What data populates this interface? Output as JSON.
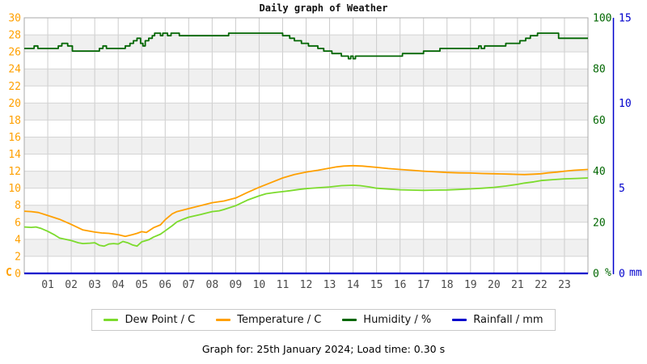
{
  "title": "Daily graph of Weather",
  "footer": "Graph for: 25th January 2024; Load time: 0.30 s",
  "chart_data": {
    "type": "line",
    "title": "Daily graph of Weather",
    "x_axis": {
      "range": [
        0,
        24
      ],
      "labels": [
        "01",
        "02",
        "03",
        "04",
        "05",
        "06",
        "07",
        "08",
        "09",
        "10",
        "11",
        "12",
        "13",
        "14",
        "15",
        "16",
        "17",
        "18",
        "19",
        "20",
        "21",
        "22",
        "23"
      ],
      "color": "#4a4a4a"
    },
    "y_axis_left": {
      "unit": "C",
      "color": "#FFA000",
      "range": [
        0,
        30
      ],
      "ticks": [
        0,
        2,
        4,
        6,
        8,
        10,
        12,
        14,
        16,
        18,
        20,
        22,
        24,
        26,
        28,
        30
      ]
    },
    "y_axis_humidity": {
      "unit": "%",
      "color": "#006600",
      "range": [
        0,
        100
      ],
      "ticks": [
        0,
        20,
        40,
        60,
        80,
        100
      ]
    },
    "y_axis_rain": {
      "unit": "mm",
      "color": "#0000CC",
      "range": [
        0,
        15
      ],
      "ticks": [
        0,
        5,
        10,
        15
      ]
    },
    "grid": true,
    "legend_position": "bottom",
    "series": [
      {
        "id": "dew-point",
        "name": "Dew Point / C",
        "color": "#7CDB2D",
        "axis": "left",
        "step": false,
        "points": [
          [
            0,
            5.45
          ],
          [
            0.3,
            5.4
          ],
          [
            0.5,
            5.45
          ],
          [
            0.7,
            5.3
          ],
          [
            1,
            4.95
          ],
          [
            1.3,
            4.5
          ],
          [
            1.5,
            4.15
          ],
          [
            2,
            3.85
          ],
          [
            2.3,
            3.6
          ],
          [
            2.5,
            3.5
          ],
          [
            2.8,
            3.55
          ],
          [
            3,
            3.6
          ],
          [
            3.2,
            3.3
          ],
          [
            3.4,
            3.2
          ],
          [
            3.6,
            3.45
          ],
          [
            3.8,
            3.5
          ],
          [
            4,
            3.45
          ],
          [
            4.2,
            3.75
          ],
          [
            4.4,
            3.6
          ],
          [
            4.6,
            3.35
          ],
          [
            4.8,
            3.2
          ],
          [
            5,
            3.7
          ],
          [
            5.3,
            3.95
          ],
          [
            5.5,
            4.25
          ],
          [
            5.8,
            4.6
          ],
          [
            6,
            5.0
          ],
          [
            6.3,
            5.6
          ],
          [
            6.5,
            6.05
          ],
          [
            6.8,
            6.4
          ],
          [
            7,
            6.6
          ],
          [
            7.5,
            6.9
          ],
          [
            8,
            7.25
          ],
          [
            8.3,
            7.35
          ],
          [
            8.5,
            7.5
          ],
          [
            9,
            7.95
          ],
          [
            9.5,
            8.6
          ],
          [
            10,
            9.1
          ],
          [
            10.3,
            9.35
          ],
          [
            10.7,
            9.5
          ],
          [
            11,
            9.6
          ],
          [
            11.3,
            9.7
          ],
          [
            11.7,
            9.85
          ],
          [
            12,
            9.95
          ],
          [
            12.5,
            10.05
          ],
          [
            13,
            10.15
          ],
          [
            13.5,
            10.3
          ],
          [
            14,
            10.35
          ],
          [
            14.3,
            10.3
          ],
          [
            14.7,
            10.15
          ],
          [
            15,
            10.0
          ],
          [
            15.5,
            9.9
          ],
          [
            16,
            9.82
          ],
          [
            16.5,
            9.78
          ],
          [
            17,
            9.75
          ],
          [
            17.5,
            9.78
          ],
          [
            18,
            9.8
          ],
          [
            18.5,
            9.85
          ],
          [
            19,
            9.92
          ],
          [
            19.5,
            10.0
          ],
          [
            20,
            10.1
          ],
          [
            20.5,
            10.25
          ],
          [
            21,
            10.45
          ],
          [
            21.3,
            10.6
          ],
          [
            21.7,
            10.75
          ],
          [
            22,
            10.9
          ],
          [
            22.5,
            11.0
          ],
          [
            23,
            11.1
          ],
          [
            23.5,
            11.15
          ],
          [
            24,
            11.2
          ]
        ]
      },
      {
        "id": "temperature",
        "name": "Temperature / C",
        "color": "#FFA000",
        "axis": "left",
        "step": false,
        "points": [
          [
            0,
            7.3
          ],
          [
            0.3,
            7.25
          ],
          [
            0.6,
            7.15
          ],
          [
            1,
            6.8
          ],
          [
            1.5,
            6.35
          ],
          [
            2,
            5.75
          ],
          [
            2.5,
            5.1
          ],
          [
            3,
            4.85
          ],
          [
            3.3,
            4.75
          ],
          [
            3.6,
            4.7
          ],
          [
            3.8,
            4.62
          ],
          [
            4,
            4.55
          ],
          [
            4.3,
            4.35
          ],
          [
            4.6,
            4.55
          ],
          [
            4.8,
            4.7
          ],
          [
            5,
            4.9
          ],
          [
            5.2,
            4.8
          ],
          [
            5.5,
            5.35
          ],
          [
            5.8,
            5.7
          ],
          [
            6,
            6.3
          ],
          [
            6.3,
            7.0
          ],
          [
            6.5,
            7.25
          ],
          [
            7,
            7.6
          ],
          [
            7.5,
            7.95
          ],
          [
            8,
            8.3
          ],
          [
            8.5,
            8.5
          ],
          [
            9,
            8.85
          ],
          [
            9.5,
            9.5
          ],
          [
            10,
            10.1
          ],
          [
            10.5,
            10.65
          ],
          [
            11,
            11.2
          ],
          [
            11.5,
            11.6
          ],
          [
            12,
            11.9
          ],
          [
            12.5,
            12.1
          ],
          [
            13,
            12.35
          ],
          [
            13.3,
            12.5
          ],
          [
            13.6,
            12.6
          ],
          [
            14,
            12.65
          ],
          [
            14.4,
            12.6
          ],
          [
            15,
            12.45
          ],
          [
            15.5,
            12.3
          ],
          [
            16,
            12.2
          ],
          [
            16.5,
            12.1
          ],
          [
            17,
            12.0
          ],
          [
            17.5,
            11.92
          ],
          [
            18,
            11.85
          ],
          [
            18.5,
            11.8
          ],
          [
            19,
            11.78
          ],
          [
            19.5,
            11.72
          ],
          [
            20,
            11.7
          ],
          [
            20.3,
            11.68
          ],
          [
            20.7,
            11.65
          ],
          [
            21,
            11.62
          ],
          [
            21.3,
            11.6
          ],
          [
            21.7,
            11.65
          ],
          [
            22,
            11.7
          ],
          [
            22.3,
            11.8
          ],
          [
            22.7,
            11.9
          ],
          [
            23,
            12.0
          ],
          [
            23.4,
            12.1
          ],
          [
            23.7,
            12.15
          ],
          [
            24,
            12.2
          ]
        ]
      },
      {
        "id": "humidity",
        "name": "Humidity / %",
        "color": "#006600",
        "axis": "humidity",
        "step": true,
        "points": [
          [
            0,
            88
          ],
          [
            0.42,
            89
          ],
          [
            0.58,
            88
          ],
          [
            1.45,
            89
          ],
          [
            1.6,
            90
          ],
          [
            1.85,
            89
          ],
          [
            2.05,
            87
          ],
          [
            3.2,
            88
          ],
          [
            3.35,
            89
          ],
          [
            3.5,
            88
          ],
          [
            4.3,
            89
          ],
          [
            4.5,
            90
          ],
          [
            4.65,
            91
          ],
          [
            4.8,
            92
          ],
          [
            4.95,
            90
          ],
          [
            5.05,
            89
          ],
          [
            5.15,
            91
          ],
          [
            5.3,
            92
          ],
          [
            5.45,
            93
          ],
          [
            5.55,
            94
          ],
          [
            5.8,
            93
          ],
          [
            5.9,
            94
          ],
          [
            6.1,
            93
          ],
          [
            6.25,
            94
          ],
          [
            6.6,
            93
          ],
          [
            8.7,
            94
          ],
          [
            11.0,
            93
          ],
          [
            11.3,
            92
          ],
          [
            11.5,
            91
          ],
          [
            11.8,
            90
          ],
          [
            12.1,
            89
          ],
          [
            12.5,
            88
          ],
          [
            12.75,
            87
          ],
          [
            13.1,
            86
          ],
          [
            13.5,
            85
          ],
          [
            13.8,
            84
          ],
          [
            13.9,
            85
          ],
          [
            14.0,
            84
          ],
          [
            14.1,
            85
          ],
          [
            16.1,
            86
          ],
          [
            17.0,
            87
          ],
          [
            17.7,
            88
          ],
          [
            19.35,
            89
          ],
          [
            19.45,
            88
          ],
          [
            19.6,
            89
          ],
          [
            20.5,
            90
          ],
          [
            21.1,
            91
          ],
          [
            21.35,
            92
          ],
          [
            21.55,
            93
          ],
          [
            21.85,
            94
          ],
          [
            22.75,
            92
          ],
          [
            24,
            92
          ]
        ]
      },
      {
        "id": "rainfall",
        "name": "Rainfall / mm",
        "color": "#0000CC",
        "axis": "rain",
        "step": false,
        "points": [
          [
            0,
            0
          ],
          [
            24,
            0
          ]
        ]
      }
    ]
  }
}
